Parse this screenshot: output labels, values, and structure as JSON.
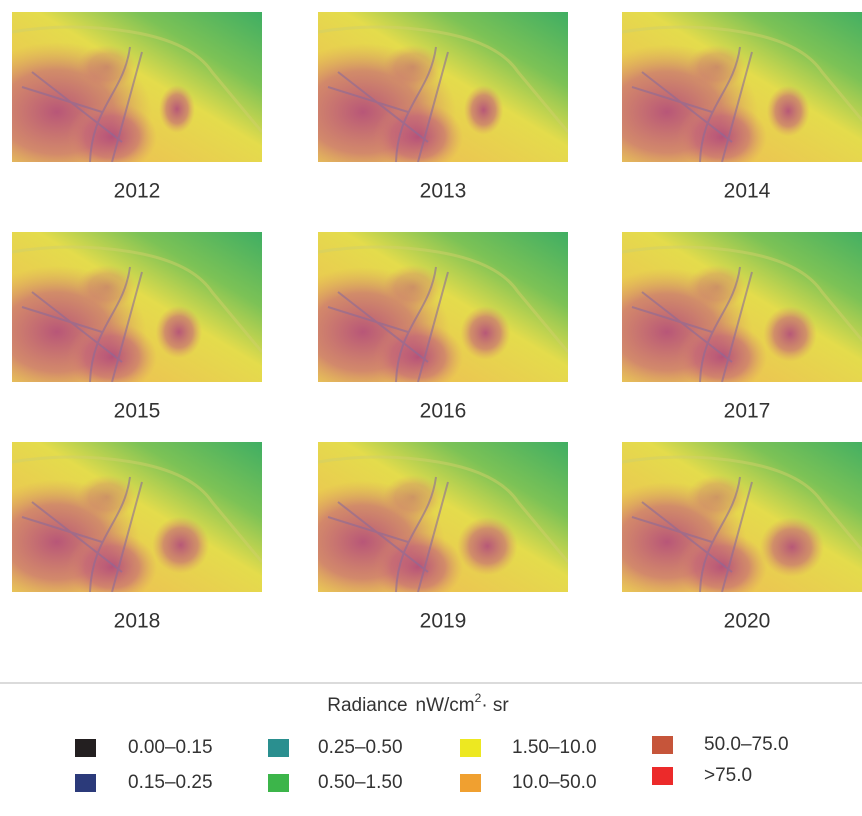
{
  "panels": [
    {
      "year": "2012"
    },
    {
      "year": "2013"
    },
    {
      "year": "2014"
    },
    {
      "year": "2015"
    },
    {
      "year": "2016"
    },
    {
      "year": "2017"
    },
    {
      "year": "2018"
    },
    {
      "year": "2019"
    },
    {
      "year": "2020"
    }
  ],
  "legend": {
    "title": "Radiance",
    "unit": "nW/cm",
    "unit_exponent": "2",
    "unit_tail": "· sr",
    "items": [
      {
        "label": "0.00–0.15",
        "color": "#231f20"
      },
      {
        "label": "0.15–0.25",
        "color": "#2b3a7a"
      },
      {
        "label": "0.25–0.50",
        "color": "#2a8f8f"
      },
      {
        "label": "0.50–1.50",
        "color": "#3cb54a"
      },
      {
        "label": "1.50–10.0",
        "color": "#ede821"
      },
      {
        "label": "10.0–50.0",
        "color": "#f0a030"
      },
      {
        "label": "50.0–75.0",
        "color": "#c6553a"
      },
      {
        "label": ">75.0",
        "color": "#ec2a2a"
      }
    ]
  }
}
